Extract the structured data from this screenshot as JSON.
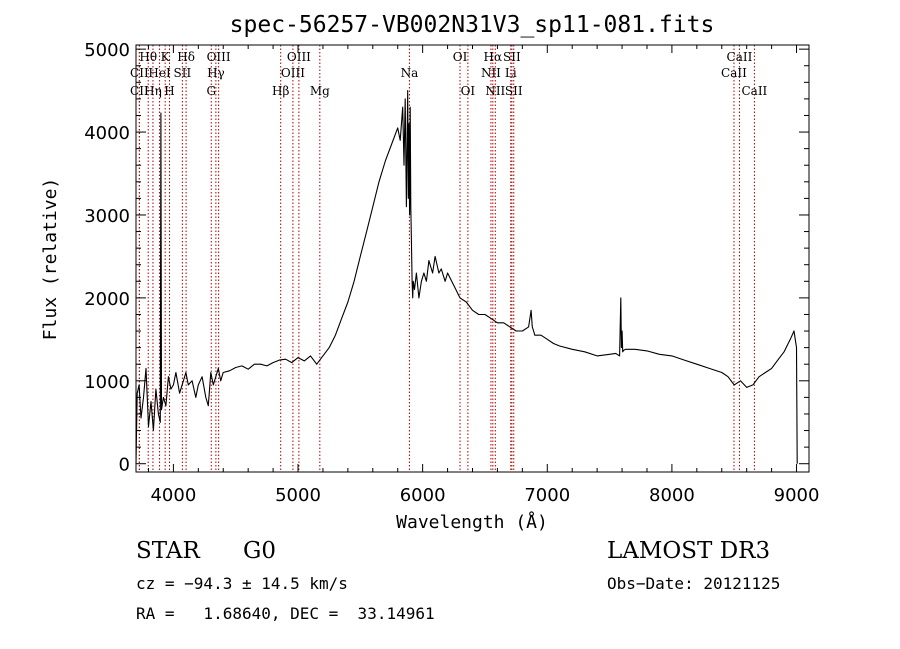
{
  "chart_data": {
    "type": "line",
    "title": "spec-56257-VB002N31V3_sp11-081.fits",
    "xlabel": "Wavelength (Å)",
    "ylabel": "Flux (relative)",
    "xlim": [
      3700,
      9100
    ],
    "ylim": [
      -100,
      5050
    ],
    "xticks": [
      4000,
      5000,
      6000,
      7000,
      8000,
      9000
    ],
    "yticks": [
      0,
      1000,
      2000,
      3000,
      4000,
      5000
    ],
    "spectrum": {
      "x": [
        3700,
        3710,
        3725,
        3740,
        3760,
        3780,
        3800,
        3820,
        3840,
        3860,
        3880,
        3895,
        3900,
        3905,
        3920,
        3940,
        3960,
        3980,
        4000,
        4020,
        4050,
        4080,
        4100,
        4120,
        4150,
        4180,
        4200,
        4230,
        4260,
        4280,
        4300,
        4320,
        4340,
        4360,
        4380,
        4400,
        4450,
        4500,
        4550,
        4600,
        4650,
        4700,
        4750,
        4800,
        4850,
        4900,
        4950,
        5000,
        5050,
        5100,
        5150,
        5200,
        5250,
        5300,
        5350,
        5400,
        5450,
        5500,
        5550,
        5600,
        5650,
        5700,
        5750,
        5800,
        5820,
        5840,
        5850,
        5860,
        5870,
        5880,
        5885,
        5890,
        5895,
        5900,
        5905,
        5910,
        5915,
        5920,
        5925,
        5935,
        5950,
        5970,
        5990,
        6010,
        6030,
        6050,
        6080,
        6100,
        6130,
        6150,
        6180,
        6200,
        6250,
        6300,
        6350,
        6400,
        6450,
        6500,
        6550,
        6600,
        6650,
        6700,
        6750,
        6800,
        6850,
        6870,
        6880,
        6890,
        6900,
        6950,
        7000,
        7050,
        7100,
        7200,
        7300,
        7400,
        7500,
        7550,
        7580,
        7590,
        7595,
        7600,
        7605,
        7615,
        7630,
        7700,
        7800,
        7900,
        8000,
        8100,
        8200,
        8300,
        8400,
        8450,
        8500,
        8550,
        8600,
        8650,
        8700,
        8750,
        8800,
        8850,
        8900,
        8950,
        8980,
        9000,
        9005
      ],
      "y": [
        0,
        850,
        950,
        550,
        800,
        1150,
        450,
        750,
        400,
        900,
        600,
        500,
        4230,
        650,
        800,
        700,
        1050,
        900,
        950,
        1100,
        850,
        1000,
        1100,
        950,
        1000,
        800,
        950,
        1050,
        800,
        700,
        1100,
        950,
        1050,
        1150,
        1000,
        1100,
        1120,
        1160,
        1180,
        1140,
        1200,
        1200,
        1180,
        1220,
        1250,
        1260,
        1220,
        1280,
        1240,
        1300,
        1200,
        1300,
        1400,
        1550,
        1750,
        1950,
        2200,
        2500,
        2800,
        3100,
        3400,
        3650,
        3850,
        4050,
        3900,
        4300,
        3600,
        4400,
        3100,
        4500,
        3200,
        4100,
        3000,
        4300,
        3100,
        2700,
        2200,
        2000,
        2200,
        2100,
        2300,
        2000,
        2200,
        2300,
        2200,
        2450,
        2300,
        2500,
        2300,
        2350,
        2200,
        2300,
        2150,
        2000,
        1950,
        1850,
        1800,
        1800,
        1750,
        1700,
        1700,
        1650,
        1600,
        1600,
        1650,
        1850,
        1650,
        1600,
        1550,
        1550,
        1500,
        1450,
        1420,
        1380,
        1350,
        1300,
        1320,
        1330,
        1300,
        2000,
        1400,
        1600,
        1350,
        1370,
        1380,
        1380,
        1360,
        1320,
        1300,
        1250,
        1200,
        1150,
        1100,
        1050,
        950,
        1000,
        920,
        950,
        1050,
        1100,
        1150,
        1250,
        1350,
        1500,
        1600,
        1400,
        0
      ]
    },
    "emission_lines": [
      {
        "label": "CII",
        "wl": 3727,
        "row": 2
      },
      {
        "label": "CII",
        "wl": 3727,
        "row": 3
      },
      {
        "label": "Hθ",
        "wl": 3798,
        "row": 1
      },
      {
        "label": "Hη",
        "wl": 3836,
        "row": 3
      },
      {
        "label": "HeI",
        "wl": 3889,
        "row": 2
      },
      {
        "label": "K",
        "wl": 3934,
        "row": 1
      },
      {
        "label": "H",
        "wl": 3969,
        "row": 3
      },
      {
        "label": "SII",
        "wl": 4072,
        "row": 2
      },
      {
        "label": "Hδ",
        "wl": 4102,
        "row": 1
      },
      {
        "label": "G",
        "wl": 4304,
        "row": 3
      },
      {
        "label": "Hγ",
        "wl": 4341,
        "row": 2
      },
      {
        "label": "OIII",
        "wl": 4363,
        "row": 1
      },
      {
        "label": "Hβ",
        "wl": 4861,
        "row": 3
      },
      {
        "label": "OIII",
        "wl": 4959,
        "row": 2
      },
      {
        "label": "OIII",
        "wl": 5007,
        "row": 1
      },
      {
        "label": "Mg",
        "wl": 5175,
        "row": 3
      },
      {
        "label": "Na",
        "wl": 5894,
        "row": 2
      },
      {
        "label": "OI",
        "wl": 6300,
        "row": 1
      },
      {
        "label": "OI",
        "wl": 6363,
        "row": 3
      },
      {
        "label": "NII",
        "wl": 6548,
        "row": 2
      },
      {
        "label": "Hα",
        "wl": 6563,
        "row": 1
      },
      {
        "label": "NII",
        "wl": 6583,
        "row": 3
      },
      {
        "label": "Li",
        "wl": 6707,
        "row": 2
      },
      {
        "label": "SII",
        "wl": 6716,
        "row": 1
      },
      {
        "label": "SII",
        "wl": 6731,
        "row": 3
      },
      {
        "label": "CaII",
        "wl": 8498,
        "row": 2
      },
      {
        "label": "CaII",
        "wl": 8542,
        "row": 1
      },
      {
        "label": "CaII",
        "wl": 8662,
        "row": 3
      }
    ],
    "colors": {
      "line_marker": "#b00000",
      "spectrum": "#000000"
    }
  },
  "info": {
    "class": "STAR",
    "subclass": "G0",
    "survey": "LAMOST DR3",
    "cz": "cz = −94.3 ± 14.5 km/s",
    "obs_date": "Obs−Date: 20121125",
    "coords": "RA =   1.68640, DEC =  33.14961"
  }
}
